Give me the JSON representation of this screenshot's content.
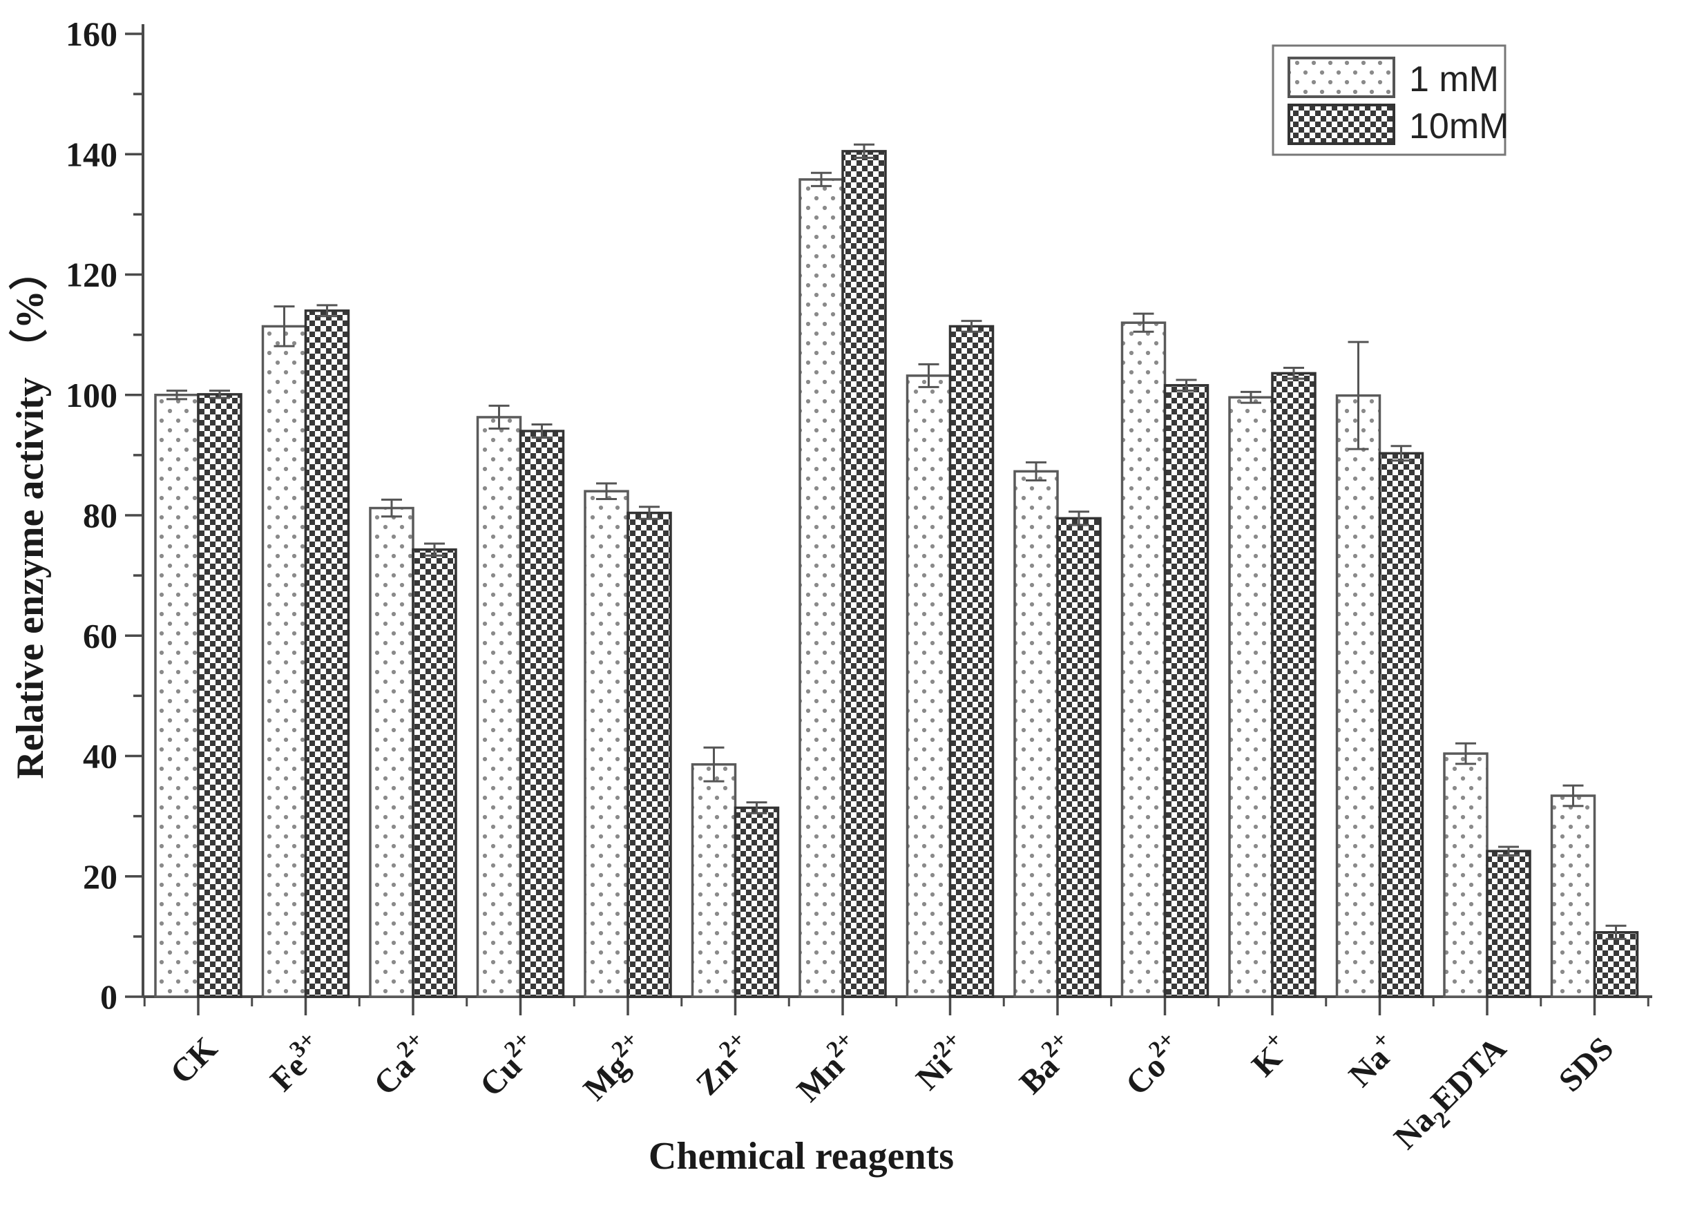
{
  "figure": {
    "background": "#ffffff"
  },
  "axes": {
    "y_title": "Relative enzyme activity （%）",
    "x_title": "Chemical reagents"
  },
  "legend": {
    "position": "top-right",
    "items": [
      {
        "label": "1 mM",
        "pattern": "dots"
      },
      {
        "label": "10mM",
        "pattern": "checker"
      }
    ]
  },
  "chart_data": {
    "type": "bar",
    "title": "",
    "xlabel": "Chemical reagents",
    "ylabel": "Relative enzyme activity （%）",
    "ylim": [
      0,
      160
    ],
    "y_major_step": 20,
    "y_minor_step": 10,
    "y_major_ticks": [
      0,
      20,
      40,
      60,
      80,
      100,
      120,
      140,
      160
    ],
    "grid": false,
    "legend_position": "top-right",
    "categories": [
      "CK",
      "Fe3+",
      "Ca2+",
      "Cu2+",
      "Mg2+",
      "Zn2+",
      "Mn2+",
      "Ni2+",
      "Ba2+",
      "Co2+",
      "K+",
      "Na+",
      "Na2EDTA",
      "SDS"
    ],
    "categories_rich": [
      [
        {
          "t": "CK"
        }
      ],
      [
        {
          "t": "Fe"
        },
        {
          "t": "3+",
          "sup": true
        }
      ],
      [
        {
          "t": "Ca"
        },
        {
          "t": "2+",
          "sup": true
        }
      ],
      [
        {
          "t": "Cu"
        },
        {
          "t": "2+",
          "sup": true
        }
      ],
      [
        {
          "t": "Mg"
        },
        {
          "t": "2+",
          "sup": true
        }
      ],
      [
        {
          "t": "Zn"
        },
        {
          "t": "2+",
          "sup": true
        }
      ],
      [
        {
          "t": "Mn"
        },
        {
          "t": "2+",
          "sup": true
        }
      ],
      [
        {
          "t": "Ni"
        },
        {
          "t": "2+",
          "sup": true
        }
      ],
      [
        {
          "t": "Ba"
        },
        {
          "t": "2+",
          "sup": true
        }
      ],
      [
        {
          "t": "Co"
        },
        {
          "t": "2+",
          "sup": true
        }
      ],
      [
        {
          "t": "K"
        },
        {
          "t": "+",
          "sup": true
        }
      ],
      [
        {
          "t": "Na"
        },
        {
          "t": "+",
          "sup": true
        }
      ],
      [
        {
          "t": "Na"
        },
        {
          "t": "2",
          "sub": true
        },
        {
          "t": "EDTA"
        }
      ],
      [
        {
          "t": "SDS"
        }
      ]
    ],
    "series": [
      {
        "name": "1 mM",
        "pattern": "dots",
        "values": [
          100.0,
          111.4,
          81.2,
          96.3,
          84.0,
          38.6,
          135.8,
          103.2,
          87.3,
          112.0,
          99.6,
          99.9,
          40.4,
          33.4
        ],
        "errors": [
          0.7,
          3.3,
          1.4,
          1.9,
          1.3,
          2.8,
          1.1,
          1.9,
          1.5,
          1.5,
          0.9,
          8.9,
          1.7,
          1.7
        ]
      },
      {
        "name": "10mM",
        "pattern": "checker",
        "values": [
          100.1,
          114.0,
          74.3,
          94.0,
          80.4,
          31.4,
          140.5,
          111.4,
          79.5,
          101.6,
          103.6,
          90.3,
          24.2,
          10.7
        ],
        "errors": [
          0.6,
          0.9,
          1.0,
          1.1,
          1.0,
          0.9,
          1.1,
          0.9,
          1.1,
          0.9,
          0.9,
          1.2,
          0.7,
          1.1
        ]
      }
    ]
  },
  "colors": {
    "axis": "#4a4a4a",
    "text": "#1a1a1a",
    "bar_outline_light": "#5a5a5a",
    "bar_outline_dark": "#333333",
    "error_bar": "#555555",
    "checker_dark": "#383838",
    "dot_gray": "#8a8a8a",
    "legend_border": "#777777"
  }
}
